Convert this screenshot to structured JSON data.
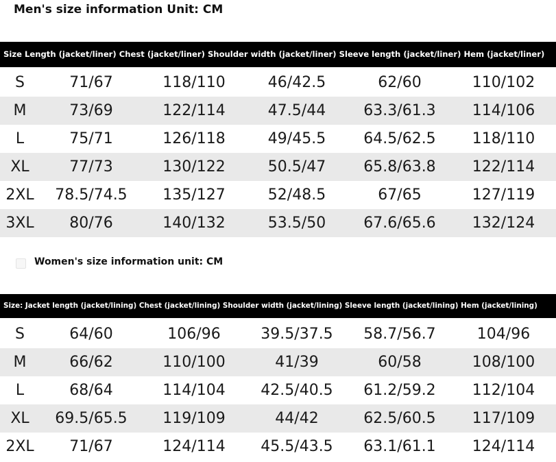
{
  "men": {
    "title": "Men's size information Unit: CM",
    "header": "Size Length (jacket/liner) Chest (jacket/liner) Shoulder width (jacket/liner) Sleeve length (jacket/liner) Hem (jacket/liner)",
    "rows": [
      [
        "S",
        "71/67",
        "118/110",
        "46/42.5",
        "62/60",
        "110/102"
      ],
      [
        "M",
        "73/69",
        "122/114",
        "47.5/44",
        "63.3/61.3",
        "114/106"
      ],
      [
        "L",
        "75/71",
        "126/118",
        "49/45.5",
        "64.5/62.5",
        "118/110"
      ],
      [
        "XL",
        "77/73",
        "130/122",
        "50.5/47",
        "65.8/63.8",
        "122/114"
      ],
      [
        "2XL",
        "78.5/74.5",
        "135/127",
        "52/48.5",
        "67/65",
        "127/119"
      ],
      [
        "3XL",
        "80/76",
        "140/132",
        "53.5/50",
        "67.6/65.6",
        "132/124"
      ]
    ]
  },
  "women": {
    "title": "Women's size information unit: CM",
    "header": "Size: Jacket length (jacket/lining) Chest (jacket/lining) Shoulder width (jacket/lining) Sleeve length (jacket/lining) Hem (jacket/lining)",
    "rows": [
      [
        "S",
        "64/60",
        "106/96",
        "39.5/37.5",
        "58.7/56.7",
        "104/96"
      ],
      [
        "M",
        "66/62",
        "110/100",
        "41/39",
        "60/58",
        "108/100"
      ],
      [
        "L",
        "68/64",
        "114/104",
        "42.5/40.5",
        "61.2/59.2",
        "112/104"
      ],
      [
        "XL",
        "69.5/65.5",
        "119/109",
        "44/42",
        "62.5/60.5",
        "117/109"
      ],
      [
        "2XL",
        "71/67",
        "124/114",
        "45.5/43.5",
        "63.1/61.1",
        "124/114"
      ]
    ]
  },
  "colors": {
    "header_bg": "#000000",
    "row_shade": "#e9e9e9"
  }
}
